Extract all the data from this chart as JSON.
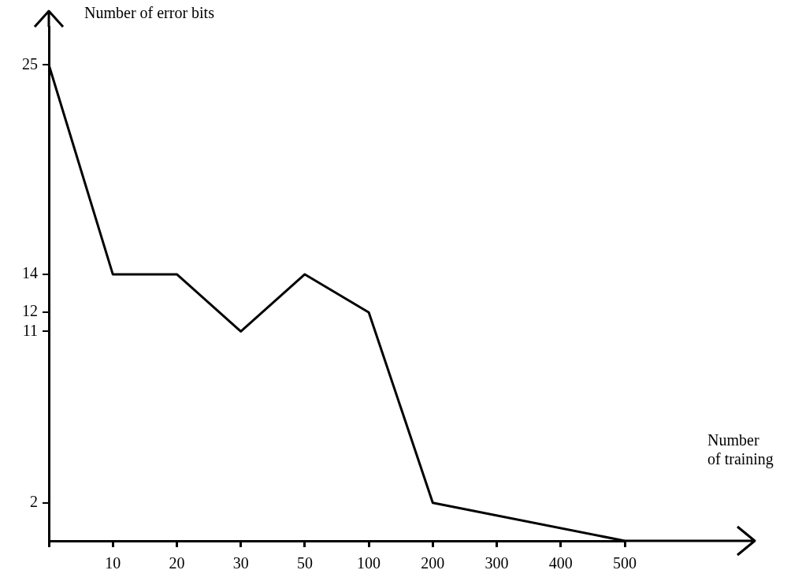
{
  "chart_data": {
    "type": "line",
    "xlabel": "Number\nof training",
    "ylabel": "Number of error bits",
    "categories": [
      null,
      "10",
      "20",
      "30",
      "50",
      "100",
      "200",
      "300",
      "400",
      "500"
    ],
    "series": [
      {
        "color": "#000000",
        "values": [
          25,
          14,
          14,
          11,
          14,
          12,
          2,
          null,
          null,
          0
        ]
      }
    ],
    "ylim": [
      0,
      27
    ],
    "yticks": [
      2,
      11,
      12,
      14,
      25
    ],
    "grid": false,
    "legend": false,
    "marker": "none",
    "line_style": "solid"
  }
}
